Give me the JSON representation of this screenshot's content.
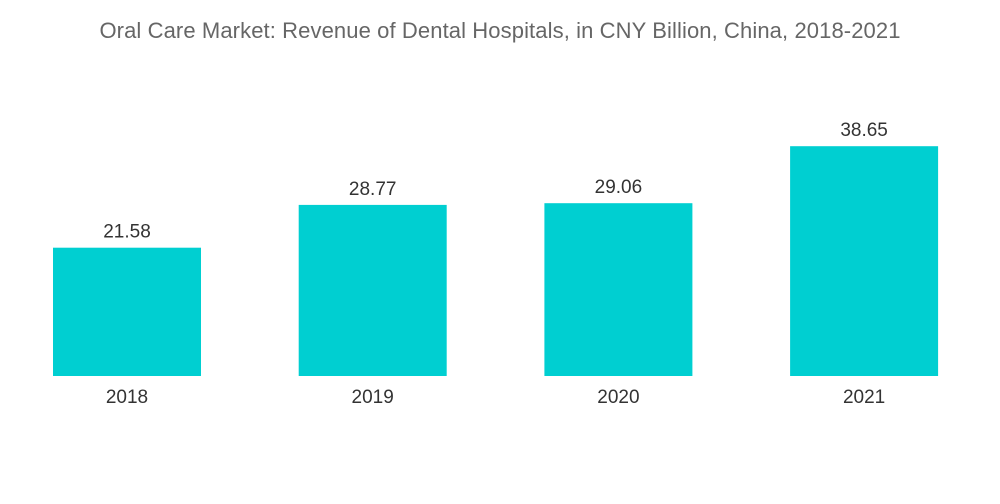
{
  "chart_data": {
    "type": "bar",
    "title": "Oral Care Market: Revenue of Dental Hospitals, in CNY Billion, China, 2018-2021",
    "categories": [
      "2018",
      "2019",
      "2020",
      "2021"
    ],
    "values": [
      21.58,
      28.77,
      29.06,
      38.65
    ],
    "value_labels": [
      "21.58",
      "28.77",
      "29.06",
      "38.65"
    ],
    "xlabel": "",
    "ylabel": "",
    "ylim": [
      0,
      40
    ],
    "grid": false,
    "legend": "none",
    "colors": {
      "bar": "#00CFD1"
    }
  }
}
